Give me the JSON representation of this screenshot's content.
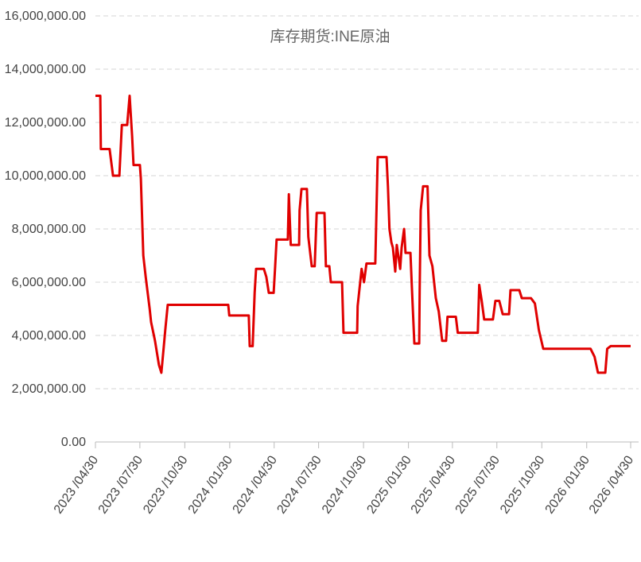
{
  "chart_data": {
    "type": "line",
    "title": "库存期货:INE原油",
    "x": [
      "2023/04/30",
      "2023/05/10",
      "2023/05/11",
      "2023/05/29",
      "2023/06/05",
      "2023/06/18",
      "2023/06/23",
      "2023/07/04",
      "2023/07/09",
      "2023/07/14",
      "2023/07/17",
      "2023/07/30",
      "2023/08/01",
      "2023/08/06",
      "2023/08/11",
      "2023/08/15",
      "2023/08/19",
      "2023/08/22",
      "2023/08/30",
      "2023/09/07",
      "2023/09/12",
      "2023/09/17",
      "2023/09/20",
      "2023/09/25",
      "2024/01/27",
      "2024/01/29",
      "2024/03/09",
      "2024/03/11",
      "2024/03/17",
      "2024/03/21",
      "2024/03/24",
      "2024/04/09",
      "2024/04/14",
      "2024/04/19",
      "2024/04/29",
      "2024/05/02",
      "2024/05/05",
      "2024/05/28",
      "2024/05/30",
      "2024/06/03",
      "2024/06/20",
      "2024/06/21",
      "2024/06/25",
      "2024/07/06",
      "2024/07/09",
      "2024/07/16",
      "2024/07/22",
      "2024/07/26",
      "2024/08/11",
      "2024/08/14",
      "2024/08/21",
      "2024/08/24",
      "2024/09/16",
      "2024/09/19",
      "2024/10/17",
      "2024/10/18",
      "2024/10/26",
      "2024/10/31",
      "2024/11/05",
      "2024/11/23",
      "2024/11/25",
      "2024/11/28",
      "2024/12/16",
      "2024/12/19",
      "2024/12/22",
      "2024/12/26",
      "2024/12/29",
      "2025/01/03",
      "2025/01/06",
      "2025/01/13",
      "2025/01/16",
      "2025/01/21",
      "2025/01/24",
      "2025/02/03",
      "2025/02/06",
      "2025/02/11",
      "2025/02/21",
      "2025/02/22",
      "2025/02/24",
      "2025/03/01",
      "2025/03/10",
      "2025/03/14",
      "2025/03/20",
      "2025/03/27",
      "2025/04/02",
      "2025/04/09",
      "2025/04/17",
      "2025/04/20",
      "2025/05/07",
      "2025/05/11",
      "2025/06/21",
      "2025/06/24",
      "2025/06/29",
      "2025/07/04",
      "2025/07/22",
      "2025/07/27",
      "2025/08/04",
      "2025/08/11",
      "2025/08/24",
      "2025/08/27",
      "2025/09/14",
      "2025/09/19",
      "2025/10/08",
      "2025/10/16",
      "2025/10/24",
      "2025/11/02",
      "2026/02/07",
      "2026/02/15",
      "2026/02/22",
      "2026/03/09",
      "2026/03/13",
      "2026/03/20",
      "2026/04/30"
    ],
    "series": [
      {
        "name": "库存期货:INE原油",
        "color": "#e00000",
        "values": [
          13000000,
          13000000,
          11000000,
          11000000,
          10000000,
          10000000,
          11900000,
          11900000,
          13000000,
          11500000,
          10400000,
          10400000,
          9900000,
          7000000,
          6200000,
          5600000,
          5000000,
          4500000,
          3800000,
          2900000,
          2600000,
          3600000,
          4200000,
          5150000,
          5150000,
          4750000,
          4750000,
          3600000,
          3600000,
          5600000,
          6500000,
          6500000,
          6200000,
          5600000,
          5600000,
          6600000,
          7600000,
          7600000,
          9300000,
          7400000,
          7400000,
          8700000,
          9500000,
          9500000,
          7700000,
          6600000,
          6600000,
          8600000,
          8600000,
          6600000,
          6600000,
          6000000,
          6000000,
          4100000,
          4100000,
          5100000,
          6500000,
          6000000,
          6700000,
          6700000,
          8300000,
          10700000,
          10700000,
          9600000,
          8000000,
          7500000,
          7300000,
          6400000,
          7400000,
          6500000,
          7300000,
          8000000,
          7100000,
          7100000,
          5800000,
          3700000,
          3700000,
          5700000,
          8700000,
          9600000,
          9600000,
          7000000,
          6600000,
          5400000,
          4900000,
          3800000,
          3800000,
          4700000,
          4700000,
          4100000,
          4100000,
          5900000,
          5300000,
          4600000,
          4600000,
          5300000,
          5300000,
          4800000,
          4800000,
          5700000,
          5700000,
          5400000,
          5400000,
          5200000,
          4200000,
          3500000,
          3500000,
          3200000,
          2600000,
          2600000,
          3500000,
          3600000,
          3600000
        ]
      }
    ],
    "xlim": [
      "2023/04/30",
      "2026/04/30"
    ],
    "xticks": [
      {
        "value": "2023/04/30",
        "label": "2023 /04/30"
      },
      {
        "value": "2023/07/30",
        "label": "2023 /07/30"
      },
      {
        "value": "2023/10/30",
        "label": "2023 /10/30"
      },
      {
        "value": "2024/01/30",
        "label": "2024 /01/30"
      },
      {
        "value": "2024/04/30",
        "label": "2024 /04/30"
      },
      {
        "value": "2024/07/30",
        "label": "2024 /07/30"
      },
      {
        "value": "2024/10/30",
        "label": "2024 /10/30"
      },
      {
        "value": "2025/01/30",
        "label": "2025 /01/30"
      },
      {
        "value": "2025/04/30",
        "label": "2025 /04/30"
      },
      {
        "value": "2025/07/30",
        "label": "2025 /07/30"
      },
      {
        "value": "2025/10/30",
        "label": "2025 /10/30"
      },
      {
        "value": "2026/01/30",
        "label": "2026 /01/30"
      },
      {
        "value": "2026/04/30",
        "label": "2026 /04/30"
      }
    ],
    "ylim": [
      0,
      16000000
    ],
    "yticks": [
      {
        "value": 0,
        "label": "0.00"
      },
      {
        "value": 2000000,
        "label": "2,000,000.00"
      },
      {
        "value": 4000000,
        "label": "4,000,000.00"
      },
      {
        "value": 6000000,
        "label": "6,000,000.00"
      },
      {
        "value": 8000000,
        "label": "8,000,000.00"
      },
      {
        "value": 10000000,
        "label": "10,000,000.00"
      },
      {
        "value": 12000000,
        "label": "12,000,000.00"
      },
      {
        "value": 14000000,
        "label": "14,000,000.00"
      },
      {
        "value": 16000000,
        "label": "16,000,000.00"
      }
    ],
    "grid": true
  }
}
